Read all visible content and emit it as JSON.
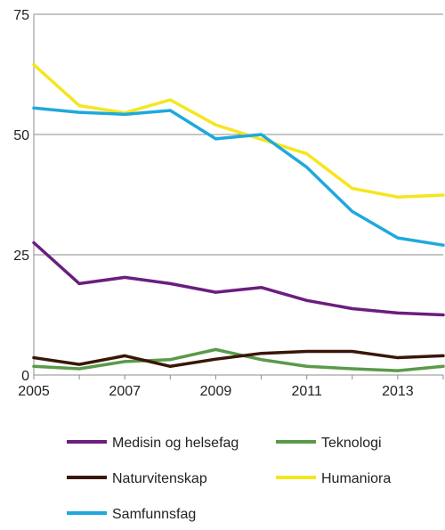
{
  "chart_data": {
    "type": "line",
    "title": "",
    "xlabel": "",
    "ylabel": "",
    "x": [
      2005,
      2006,
      2007,
      2008,
      2009,
      2010,
      2011,
      2012,
      2013,
      2014
    ],
    "xlim": [
      2005,
      2014
    ],
    "ylim": [
      0,
      75
    ],
    "x_ticks": [
      "2005",
      "2007",
      "2009",
      "2011",
      "2013"
    ],
    "y_ticks": [
      "0",
      "25",
      "50",
      "75"
    ],
    "grid": "horizontal",
    "legend_position": "bottom",
    "series": [
      {
        "name": "Medisin og helsefag",
        "color": "#6a1e7e",
        "values": [
          27.5,
          19.0,
          20.3,
          19.0,
          17.2,
          18.2,
          15.5,
          13.8,
          12.9,
          12.5
        ]
      },
      {
        "name": "Teknologi",
        "color": "#5a9a4a",
        "values": [
          1.8,
          1.3,
          2.8,
          3.2,
          5.3,
          3.2,
          1.8,
          1.3,
          0.9,
          1.8
        ]
      },
      {
        "name": "Naturvitenskap",
        "color": "#3a1608",
        "values": [
          3.6,
          2.2,
          4.0,
          1.8,
          3.3,
          4.5,
          4.9,
          4.9,
          3.6,
          4.0
        ]
      },
      {
        "name": "Humaniora",
        "color": "#f5e61e",
        "values": [
          64.5,
          56.0,
          54.5,
          57.2,
          52.0,
          49.0,
          46.0,
          38.8,
          37.0,
          37.4
        ]
      },
      {
        "name": "Samfunnsfag",
        "color": "#1ea9dd",
        "values": [
          55.5,
          54.6,
          54.2,
          55.0,
          49.1,
          50.0,
          43.2,
          34.0,
          28.5,
          27.0
        ]
      }
    ]
  }
}
